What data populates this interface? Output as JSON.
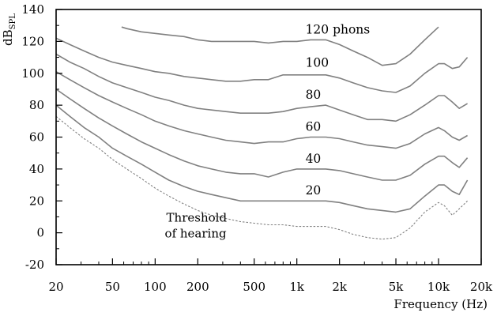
{
  "chart_data": {
    "type": "line",
    "title": "",
    "xlabel": "Frequency (Hz)",
    "ylabel": {
      "main": "dB",
      "sub": "SPL"
    },
    "xscale": "log",
    "xlim": [
      20,
      20000
    ],
    "ylim": [
      -20,
      140
    ],
    "x_ticks": [
      {
        "value": 20,
        "label": "20"
      },
      {
        "value": 50,
        "label": "50"
      },
      {
        "value": 100,
        "label": "100"
      },
      {
        "value": 200,
        "label": "200"
      },
      {
        "value": 500,
        "label": "500"
      },
      {
        "value": 1000,
        "label": "1k"
      },
      {
        "value": 2000,
        "label": "2k"
      },
      {
        "value": 5000,
        "label": "5k"
      },
      {
        "value": 10000,
        "label": "10k"
      },
      {
        "value": 20000,
        "label": "20k"
      }
    ],
    "x_minor_ticks": [
      30,
      40,
      60,
      70,
      80,
      90,
      300,
      400,
      600,
      700,
      800,
      900,
      3000,
      4000,
      6000,
      7000,
      8000,
      9000
    ],
    "y_ticks": [
      -20,
      0,
      20,
      40,
      60,
      80,
      100,
      120,
      140
    ],
    "colors": {
      "curve": "#808080",
      "threshold": "#808080",
      "axis": "#000000"
    },
    "series": [
      {
        "name": "Threshold of hearing",
        "style": "dotted",
        "label": {
          "text": "Threshold",
          "text2": "of hearing",
          "at_x": 120,
          "at_y": 7
        },
        "x": [
          20,
          25,
          31.5,
          40,
          50,
          63,
          80,
          100,
          125,
          160,
          200,
          250,
          315,
          400,
          500,
          630,
          800,
          1000,
          1250,
          1600,
          2000,
          2500,
          3150,
          4000,
          5000,
          6300,
          8000,
          10000,
          11000,
          12500,
          14000,
          16000
        ],
        "values": [
          73,
          66,
          59,
          53,
          46,
          40,
          34,
          28,
          23,
          18,
          14,
          11,
          9,
          7,
          6,
          5,
          5,
          4,
          4,
          4,
          2,
          -1,
          -3,
          -4,
          -3,
          3,
          13,
          19,
          17,
          11,
          15,
          20
        ]
      },
      {
        "name": "20 phons",
        "style": "solid",
        "label": {
          "text": "20",
          "at_x": 1150,
          "at_y": 24
        },
        "x": [
          20,
          25,
          31.5,
          40,
          50,
          63,
          80,
          100,
          125,
          160,
          200,
          250,
          315,
          400,
          500,
          630,
          800,
          1000,
          1250,
          1600,
          2000,
          2500,
          3150,
          4000,
          5000,
          6300,
          8000,
          10000,
          11000,
          12500,
          14000,
          16000
        ],
        "values": [
          80,
          73,
          66,
          60,
          53,
          48,
          43,
          38,
          33,
          29,
          26,
          24,
          22,
          20,
          20,
          20,
          20,
          20,
          20,
          20,
          19,
          17,
          15,
          14,
          13,
          15,
          23,
          30,
          30,
          26,
          24,
          33
        ]
      },
      {
        "name": "40 phons",
        "style": "solid",
        "label": {
          "text": "40",
          "at_x": 1150,
          "at_y": 44
        },
        "x": [
          20,
          25,
          31.5,
          40,
          50,
          63,
          80,
          100,
          125,
          160,
          200,
          250,
          315,
          400,
          500,
          630,
          800,
          1000,
          1250,
          1600,
          2000,
          2500,
          3150,
          4000,
          5000,
          6300,
          8000,
          10000,
          11000,
          12500,
          14000,
          16000
        ],
        "values": [
          90,
          84,
          78,
          72,
          67,
          62,
          57,
          53,
          49,
          45,
          42,
          40,
          38,
          37,
          37,
          35,
          38,
          40,
          40,
          40,
          39,
          37,
          35,
          33,
          33,
          36,
          43,
          48,
          48,
          44,
          41,
          47
        ]
      },
      {
        "name": "60 phons",
        "style": "solid",
        "label": {
          "text": "60",
          "at_x": 1150,
          "at_y": 64
        },
        "x": [
          20,
          25,
          31.5,
          40,
          50,
          63,
          80,
          100,
          125,
          160,
          200,
          250,
          315,
          400,
          500,
          630,
          800,
          1000,
          1250,
          1600,
          2000,
          2500,
          3150,
          4000,
          5000,
          6300,
          8000,
          10000,
          11000,
          12500,
          14000,
          16000
        ],
        "values": [
          101,
          96,
          91,
          86,
          82,
          78,
          74,
          70,
          67,
          64,
          62,
          60,
          58,
          57,
          56,
          57,
          57,
          59,
          60,
          60,
          59,
          57,
          55,
          54,
          53,
          56,
          62,
          66,
          64,
          60,
          58,
          61
        ]
      },
      {
        "name": "80 phons",
        "style": "solid",
        "label": {
          "text": "80",
          "at_x": 1150,
          "at_y": 84
        },
        "x": [
          20,
          25,
          31.5,
          40,
          50,
          63,
          80,
          100,
          125,
          160,
          200,
          250,
          315,
          400,
          500,
          630,
          800,
          1000,
          1250,
          1600,
          2000,
          2500,
          3150,
          4000,
          5000,
          6300,
          8000,
          10000,
          11000,
          12500,
          14000,
          16000
        ],
        "values": [
          112,
          107,
          103,
          98,
          94,
          91,
          88,
          85,
          83,
          80,
          78,
          77,
          76,
          75,
          75,
          75,
          76,
          78,
          79,
          80,
          77,
          74,
          71,
          71,
          70,
          74,
          80,
          86,
          86,
          82,
          78,
          81
        ]
      },
      {
        "name": "100 phons",
        "style": "solid",
        "label": {
          "text": "100",
          "at_x": 1150,
          "at_y": 104
        },
        "x": [
          20,
          25,
          31.5,
          40,
          50,
          63,
          80,
          100,
          125,
          160,
          200,
          250,
          315,
          400,
          500,
          630,
          800,
          1000,
          1250,
          1600,
          2000,
          2500,
          3150,
          4000,
          5000,
          6300,
          8000,
          10000,
          11000,
          12500,
          14000,
          16000
        ],
        "values": [
          122,
          118,
          114,
          110,
          107,
          105,
          103,
          101,
          100,
          98,
          97,
          96,
          95,
          95,
          96,
          96,
          99,
          99,
          99,
          99,
          97,
          94,
          91,
          89,
          88,
          92,
          100,
          106,
          106,
          103,
          104,
          110
        ]
      },
      {
        "name": "120 phons",
        "style": "solid",
        "label": {
          "text": "120 phons",
          "at_x": 1150,
          "at_y": 125
        },
        "x": [
          58,
          63,
          80,
          100,
          125,
          160,
          200,
          250,
          315,
          400,
          500,
          630,
          800,
          1000,
          1250,
          1600,
          2000,
          2500,
          3150,
          4000,
          5000,
          6300,
          8000,
          10000
        ],
        "values": [
          129,
          128,
          126,
          125,
          124,
          123,
          121,
          120,
          120,
          120,
          120,
          119,
          120,
          120,
          121,
          121,
          118,
          114,
          110,
          105,
          106,
          112,
          121,
          129
        ]
      }
    ]
  }
}
